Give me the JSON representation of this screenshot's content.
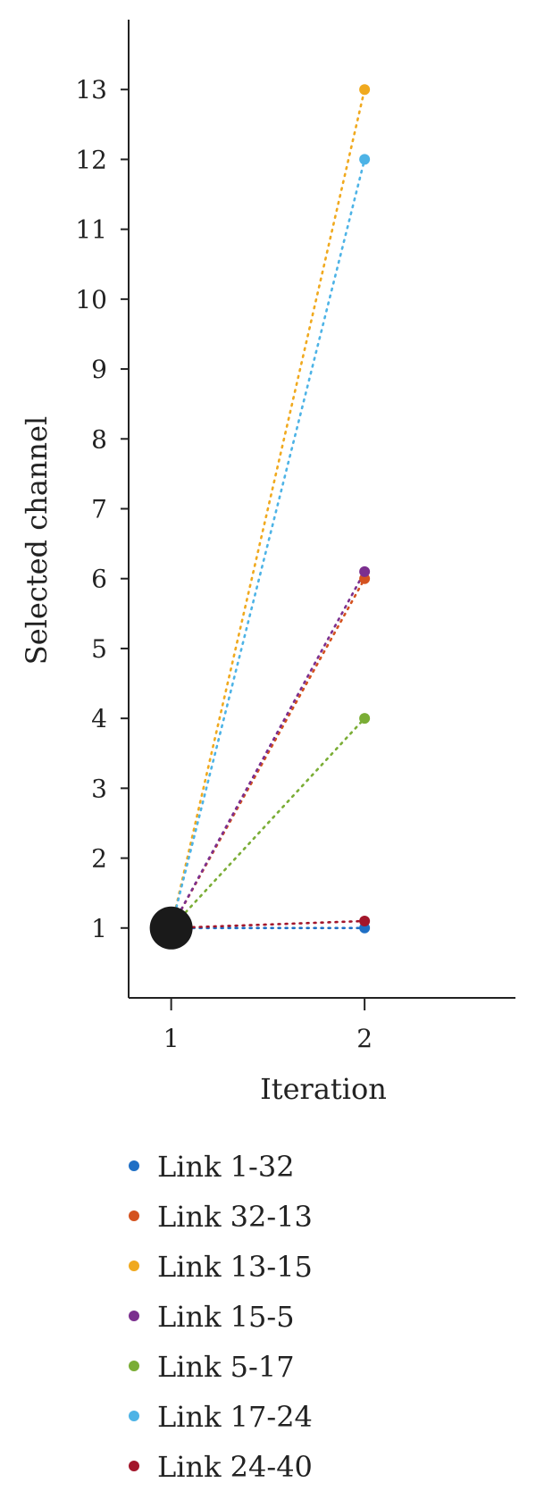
{
  "chart_data": {
    "type": "scatter",
    "xlabel": "Iteration",
    "ylabel": "Selected channel",
    "x_ticks": [
      1,
      2
    ],
    "y_ticks": [
      1,
      2,
      3,
      4,
      5,
      6,
      7,
      8,
      9,
      10,
      11,
      12,
      13
    ],
    "xlim": [
      0.78,
      2.78
    ],
    "ylim": [
      0,
      14
    ],
    "grid": false,
    "legend_position": "bottom",
    "line_style": "dotted",
    "start_marker_color": "#1a1a1a",
    "series": [
      {
        "name": "Link 1-32",
        "color": "#1f6fc5",
        "x": [
          1,
          2
        ],
        "y": [
          1,
          1
        ]
      },
      {
        "name": "Link 32-13",
        "color": "#d4521f",
        "x": [
          1,
          2
        ],
        "y": [
          1,
          6
        ]
      },
      {
        "name": "Link 13-15",
        "color": "#f0a91e",
        "x": [
          1,
          2
        ],
        "y": [
          1,
          13
        ]
      },
      {
        "name": "Link 15-5",
        "color": "#7b2f8f",
        "x": [
          1,
          2
        ],
        "y": [
          1,
          6.1
        ]
      },
      {
        "name": "Link 5-17",
        "color": "#7aad35",
        "x": [
          1,
          2
        ],
        "y": [
          1,
          4
        ]
      },
      {
        "name": "Link 17-24",
        "color": "#4db3e6",
        "x": [
          1,
          2
        ],
        "y": [
          1,
          12
        ]
      },
      {
        "name": "Link 24-40",
        "color": "#a3162b",
        "x": [
          1,
          2
        ],
        "y": [
          1,
          1.1
        ]
      }
    ]
  }
}
